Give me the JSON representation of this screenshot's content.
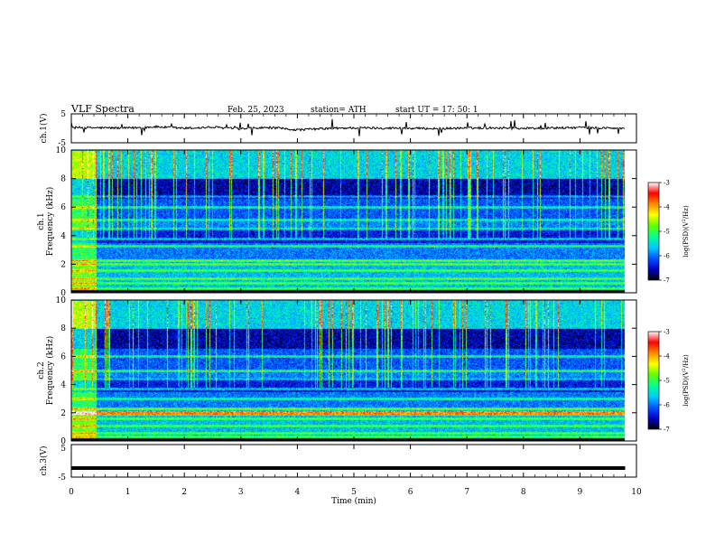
{
  "header": {
    "title": "VLF  Spectra",
    "date": "Feb. 25, 2023",
    "station": "station= ATH",
    "start": "start  UT  =    17: 50: 1"
  },
  "colors": {
    "background_dark": "#000044",
    "wave": "#000000",
    "colormap": [
      "#000000",
      "#0000c8",
      "#0050ff",
      "#00c8ff",
      "#00ff96",
      "#64ff00",
      "#ffff00",
      "#ff8c00",
      "#ff0000",
      "#ffffff"
    ]
  },
  "chart_data": [
    {
      "type": "line",
      "name": "ch1-waveform",
      "ylabel": "ch.1(V)",
      "ylim": [
        -5,
        5
      ],
      "yticks": [
        "5",
        "-5"
      ],
      "x": [
        0,
        0.5,
        1,
        1.5,
        2,
        2.5,
        3,
        3.5,
        4,
        4.5,
        5,
        5.5,
        6,
        6.5,
        7,
        7.5,
        8,
        8.5,
        9,
        9.5,
        9.8
      ],
      "values": [
        0.3,
        0.2,
        0.1,
        0.6,
        0.0,
        0.4,
        -0.2,
        0.3,
        -0.6,
        -0.1,
        0.2,
        0.1,
        0.0,
        -0.1,
        0.1,
        0.2,
        0.0,
        0.1,
        0.3,
        0.1,
        -0.1
      ]
    },
    {
      "type": "heatmap",
      "name": "ch1-spectrogram",
      "ylabel": "ch.1\nFrequency (kHz)",
      "ylim": [
        0,
        10
      ],
      "yticks": [
        "0",
        "2",
        "4",
        "6",
        "8",
        "10"
      ],
      "xlim": [
        0,
        10
      ],
      "data_end_min": 9.8,
      "colorbar": {
        "label": "log(PSD)(V²/Hz)",
        "range": [
          -7,
          -3
        ],
        "ticks": [
          "-3",
          "-4",
          "-5",
          "-6",
          "-7"
        ]
      },
      "bands_khz": [
        0.3,
        0.7,
        1.0,
        1.6,
        2.0,
        2.3,
        3.3,
        3.8,
        4.5,
        5.1,
        6.0,
        6.8
      ],
      "activity": "impulsive sferics throughout; enhanced emission below 4.5 kHz until 0.45 min"
    },
    {
      "type": "heatmap",
      "name": "ch2-spectrogram",
      "ylabel": "ch.2\nFrequency (kHz)",
      "ylim": [
        0,
        10
      ],
      "yticks": [
        "0",
        "2",
        "4",
        "6",
        "8",
        "10"
      ],
      "xlim": [
        0,
        10
      ],
      "data_end_min": 9.8,
      "colorbar": {
        "label": "log(PSD)(V²/Hz)",
        "range": [
          -7,
          -3
        ],
        "ticks": [
          "-3",
          "-4",
          "-5",
          "-6",
          "-7"
        ]
      },
      "bands_khz": [
        0.3,
        0.6,
        1.1,
        1.6,
        1.9,
        2.3,
        3.0,
        3.7,
        4.4,
        5.0,
        6.0
      ],
      "activity": "impulsive sferics throughout; enhanced emission below 4.5 kHz until 0.45 min; strong 2 kHz line"
    },
    {
      "type": "line",
      "name": "ch3-waveform",
      "ylabel": "ch.3(V)",
      "ylim": [
        -5,
        5
      ],
      "yticks": [
        "5",
        "-5"
      ],
      "x": [
        0,
        9.8
      ],
      "values": [
        -2.5,
        -2.5
      ]
    }
  ],
  "xaxis": {
    "label": "Time  (min)",
    "ticks": [
      "0",
      "1",
      "2",
      "3",
      "4",
      "5",
      "6",
      "7",
      "8",
      "9",
      "10"
    ]
  }
}
